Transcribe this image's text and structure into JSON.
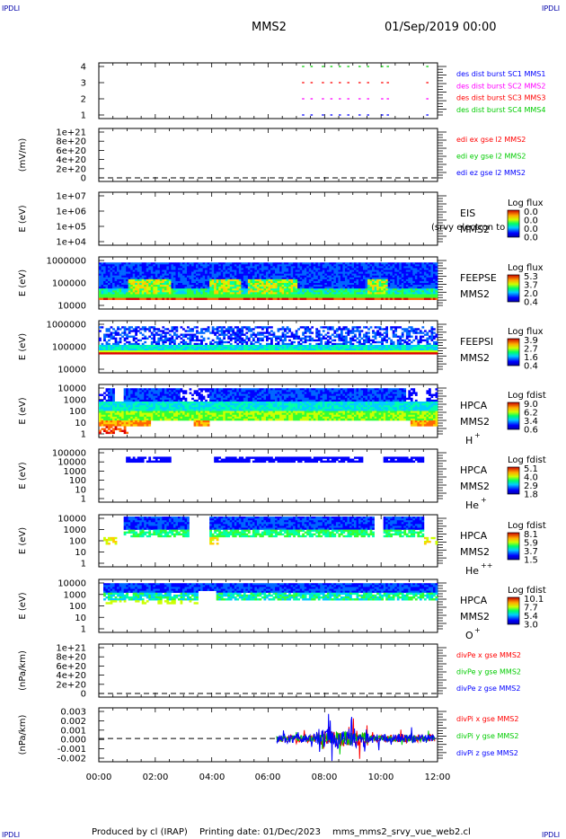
{
  "corner_label": "IPDLI",
  "header": {
    "spacecraft": "MMS2",
    "datetime": "01/Sep/2019 00:00"
  },
  "footer": {
    "produced_by": "Produced by cl (IRAP)",
    "printing_date": "Printing date: 01/Dec/2023",
    "filename": "mms_mms2_srvy_vue_web2.cl"
  },
  "colors": {
    "blue": "#0000ff",
    "red": "#ff0000",
    "green": "#00cc00",
    "magenta": "#ff00ff",
    "navy": "#00008b",
    "dark_red": "#8b0000"
  },
  "time_axis": {
    "range_hours": [
      0,
      12
    ],
    "tick_labels": [
      "00:00",
      "02:00",
      "04:00",
      "06:00",
      "08:00",
      "10:00",
      "12:00"
    ]
  },
  "chart_data": [
    {
      "type": "line",
      "panel": "burst",
      "yticks": [
        "1",
        "2",
        "3",
        "4"
      ],
      "ylim": [
        0.5,
        4.5
      ],
      "legend": [
        "des dist burst SC1 MMS1",
        "des dist burst SC2 MMS2",
        "des dist burst SC3 MMS3",
        "des dist burst SC4 MMS4"
      ],
      "legend_colors": [
        "#0000ff",
        "#ff00ff",
        "#ff0000",
        "#00cc00"
      ],
      "rows": [
        {
          "y": 4,
          "color": "#00cc00",
          "x": [
            7.2,
            7.5,
            7.9,
            8.2,
            8.5,
            8.8,
            9.2,
            9.5,
            10.0,
            10.2,
            11.6
          ]
        },
        {
          "y": 3,
          "color": "#ff0000",
          "x": [
            7.2,
            7.5,
            7.9,
            8.2,
            8.5,
            8.8,
            9.2,
            9.5,
            10.0,
            10.2,
            11.6
          ]
        },
        {
          "y": 2,
          "color": "#ff00ff",
          "x": [
            7.2,
            7.5,
            7.9,
            8.2,
            8.5,
            8.8,
            9.2,
            9.5,
            10.0,
            10.2,
            11.6
          ]
        },
        {
          "y": 1,
          "color": "#0000ff",
          "x": [
            7.2,
            7.5,
            7.9,
            8.2,
            8.5,
            8.8,
            9.2,
            9.5,
            10.0,
            10.2,
            11.6
          ]
        }
      ]
    },
    {
      "type": "line",
      "panel": "edi",
      "ylabel": "(mV/m)",
      "yticks": [
        "0",
        "2e+20",
        "4e+20",
        "6e+20",
        "8e+20",
        "1e+21"
      ],
      "ylim": [
        0,
        1e+21
      ],
      "legend": [
        "edi ex gse l2 MMS2",
        "edi ey gse l2 MMS2",
        "edi ez gse l2 MMS2"
      ],
      "legend_colors": [
        "#ff0000",
        "#00cc00",
        "#0000ff"
      ],
      "zero_line": true
    },
    {
      "type": "heatmap",
      "panel": "eis",
      "ylabel": "E (eV)",
      "yticks": [
        "1e+04",
        "1e+05",
        "1e+06",
        "1e+07"
      ],
      "label": "EIS",
      "label2": "MMS2",
      "overlay": "(srvy electron to",
      "colorbar_title": "Log flux",
      "colorbar_ticks": [
        "0.0",
        "0.0",
        "0.0",
        "0.0"
      ]
    },
    {
      "type": "heatmap",
      "panel": "feeps_e",
      "ylabel": "E (eV)",
      "yticks": [
        "10000",
        "100000",
        "1000000"
      ],
      "label": "FEEPSE",
      "label2": "MMS2",
      "colorbar_title": "Log flux",
      "colorbar_ticks": [
        "5.3",
        "3.7",
        "2.0",
        "0.4"
      ]
    },
    {
      "type": "heatmap",
      "panel": "feeps_i",
      "ylabel": "E (eV)",
      "yticks": [
        "10000",
        "100000",
        "1000000"
      ],
      "label": "FEEPSI",
      "label2": "MMS2",
      "colorbar_title": "Log flux",
      "colorbar_ticks": [
        "3.9",
        "2.7",
        "1.6",
        "0.4"
      ]
    },
    {
      "type": "heatmap",
      "panel": "hpca_h",
      "ylabel": "E (eV)",
      "yticks": [
        "1",
        "10",
        "100",
        "1000",
        "10000"
      ],
      "label": "HPCA",
      "label2": "MMS2",
      "species": "H",
      "charge": "+",
      "colorbar_title": "Log fdist",
      "colorbar_ticks": [
        "9.0",
        "6.2",
        "3.4",
        "0.6"
      ]
    },
    {
      "type": "heatmap",
      "panel": "hpca_he",
      "ylabel": "E (eV)",
      "yticks": [
        "1",
        "10",
        "100",
        "1000",
        "10000",
        "100000"
      ],
      "label": "HPCA",
      "label2": "MMS2",
      "species": "He",
      "charge": "+",
      "colorbar_title": "Log fdist",
      "colorbar_ticks": [
        "5.1",
        "4.0",
        "2.9",
        "1.8"
      ]
    },
    {
      "type": "heatmap",
      "panel": "hpca_hepp",
      "ylabel": "E (eV)",
      "yticks": [
        "1",
        "10",
        "100",
        "1000",
        "10000"
      ],
      "label": "HPCA",
      "label2": "MMS2",
      "species": "He",
      "charge": "++",
      "colorbar_title": "Log fdist",
      "colorbar_ticks": [
        "8.1",
        "5.9",
        "3.7",
        "1.5"
      ]
    },
    {
      "type": "heatmap",
      "panel": "hpca_o",
      "ylabel": "E (eV)",
      "yticks": [
        "1",
        "10",
        "100",
        "1000",
        "10000"
      ],
      "label": "HPCA",
      "label2": "MMS2",
      "species": "O",
      "charge": "+",
      "colorbar_title": "Log fdist",
      "colorbar_ticks": [
        "10.1",
        "7.7",
        "5.4",
        "3.0"
      ]
    },
    {
      "type": "line",
      "panel": "divpe",
      "ylabel": "(nPa/km)",
      "yticks": [
        "0",
        "2e+20",
        "4e+20",
        "6e+20",
        "8e+20",
        "1e+21"
      ],
      "ylim": [
        0,
        1e+21
      ],
      "legend": [
        "divPe x gse MMS2",
        "divPe y gse MMS2",
        "divPe z gse MMS2"
      ],
      "legend_colors": [
        "#ff0000",
        "#00cc00",
        "#0000ff"
      ],
      "zero_line": true
    },
    {
      "type": "line",
      "panel": "divpi",
      "ylabel": "(nPa/km)",
      "yticks": [
        "-0.002",
        "-0.001",
        "0.000",
        "0.001",
        "0.002",
        "0.003"
      ],
      "ylim": [
        -0.0025,
        0.0033
      ],
      "legend": [
        "divPi x gse MMS2",
        "divPi y gse MMS2",
        "divPi z gse MMS2"
      ],
      "legend_colors": [
        "#ff0000",
        "#00cc00",
        "#0000ff"
      ],
      "zero_line": true,
      "data_start_hour": 6.3,
      "series": [
        {
          "name": "divPi x gse MMS2",
          "amplitude": 0.0018
        },
        {
          "name": "divPi y gse MMS2",
          "amplitude": 0.0012
        },
        {
          "name": "divPi z gse MMS2",
          "amplitude": 0.0014
        }
      ]
    }
  ]
}
